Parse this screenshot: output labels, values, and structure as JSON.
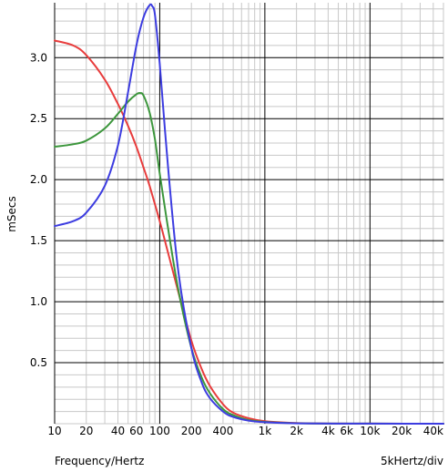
{
  "chart_data": {
    "type": "line",
    "title": "",
    "xlabel": "Frequency/Hertz",
    "ylabel": "mSecs",
    "x_scale_note": "5kHertz/div",
    "x_scale": "log",
    "xlim": [
      10,
      50000
    ],
    "ylim": [
      0,
      3.45
    ],
    "grid": true,
    "legend": "none",
    "x_ticks": [
      {
        "value": 10,
        "label": "10"
      },
      {
        "value": 20,
        "label": "20"
      },
      {
        "value": 40,
        "label": "40"
      },
      {
        "value": 60,
        "label": "60"
      },
      {
        "value": 100,
        "label": "100"
      },
      {
        "value": 200,
        "label": "200"
      },
      {
        "value": 400,
        "label": "400"
      },
      {
        "value": 1000,
        "label": "1k"
      },
      {
        "value": 2000,
        "label": "2k"
      },
      {
        "value": 4000,
        "label": "4k"
      },
      {
        "value": 6000,
        "label": "6k"
      },
      {
        "value": 10000,
        "label": "10k"
      },
      {
        "value": 20000,
        "label": "20k"
      },
      {
        "value": 40000,
        "label": "40k"
      }
    ],
    "y_ticks": [
      {
        "value": 0.5,
        "label": "0.5"
      },
      {
        "value": 1.0,
        "label": "1.0"
      },
      {
        "value": 1.5,
        "label": "1.5"
      },
      {
        "value": 2.0,
        "label": "2.0"
      },
      {
        "value": 2.5,
        "label": "2.5"
      },
      {
        "value": 3.0,
        "label": "3.0"
      }
    ],
    "series": [
      {
        "color": "#e83c3c",
        "x": [
          10,
          15,
          20,
          30,
          40,
          50,
          60,
          70,
          80,
          100,
          120,
          150,
          200,
          250,
          300,
          400,
          500,
          700,
          1000,
          2000,
          5000,
          10000,
          50000
        ],
        "y": [
          3.14,
          3.1,
          3.02,
          2.82,
          2.62,
          2.44,
          2.27,
          2.1,
          1.95,
          1.66,
          1.4,
          1.08,
          0.68,
          0.45,
          0.31,
          0.16,
          0.09,
          0.045,
          0.02,
          0.005,
          0.001,
          0.0005,
          0.0
        ]
      },
      {
        "color": "#3c963c",
        "x": [
          10,
          15,
          20,
          30,
          40,
          50,
          60,
          65,
          70,
          80,
          90,
          100,
          120,
          150,
          200,
          250,
          300,
          400,
          500,
          700,
          1000,
          2000,
          5000,
          10000,
          50000
        ],
        "y": [
          2.27,
          2.29,
          2.32,
          2.42,
          2.54,
          2.64,
          2.7,
          2.71,
          2.69,
          2.55,
          2.33,
          2.05,
          1.6,
          1.1,
          0.62,
          0.38,
          0.25,
          0.12,
          0.07,
          0.03,
          0.015,
          0.004,
          0.001,
          0.0005,
          0.0
        ]
      },
      {
        "color": "#3c3ce0",
        "x": [
          10,
          15,
          20,
          30,
          40,
          50,
          60,
          70,
          80,
          85,
          90,
          100,
          120,
          150,
          200,
          250,
          300,
          400,
          500,
          700,
          1000,
          2000,
          5000,
          10000,
          50000
        ],
        "y": [
          1.62,
          1.66,
          1.73,
          1.95,
          2.28,
          2.72,
          3.1,
          3.33,
          3.43,
          3.42,
          3.35,
          2.95,
          2.1,
          1.25,
          0.62,
          0.34,
          0.21,
          0.1,
          0.055,
          0.025,
          0.012,
          0.003,
          0.001,
          0.0005,
          0.0
        ]
      }
    ]
  }
}
